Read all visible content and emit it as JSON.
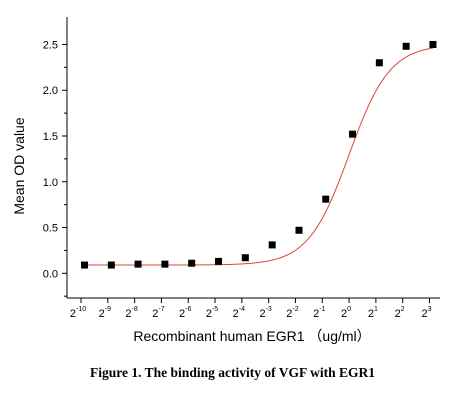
{
  "chart_data": {
    "type": "scatter",
    "title": "",
    "xlabel": "Recombinant human EGR1 （ug/ml）",
    "ylabel": "Mean OD value",
    "x_scale": "log2",
    "xlim": [
      0.00068,
      10.5
    ],
    "ylim": [
      -0.27,
      2.8
    ],
    "x_ticks": [
      {
        "base": "2",
        "exp": "-10",
        "value": 0.0009765625
      },
      {
        "base": "2",
        "exp": "-9",
        "value": 0.001953125
      },
      {
        "base": "2",
        "exp": "-8",
        "value": 0.00390625
      },
      {
        "base": "2",
        "exp": "-7",
        "value": 0.0078125
      },
      {
        "base": "2",
        "exp": "-6",
        "value": 0.015625
      },
      {
        "base": "2",
        "exp": "-5",
        "value": 0.03125
      },
      {
        "base": "2",
        "exp": "-4",
        "value": 0.0625
      },
      {
        "base": "2",
        "exp": "-3",
        "value": 0.125
      },
      {
        "base": "2",
        "exp": "-2",
        "value": 0.25
      },
      {
        "base": "2",
        "exp": "-1",
        "value": 0.5
      },
      {
        "base": "2",
        "exp": "0",
        "value": 1
      },
      {
        "base": "2",
        "exp": "1",
        "value": 2
      },
      {
        "base": "2",
        "exp": "2",
        "value": 4
      },
      {
        "base": "2",
        "exp": "3",
        "value": 8
      }
    ],
    "y_ticks": [
      "0.0",
      "0.5",
      "1.0",
      "1.5",
      "2.0",
      "2.5"
    ],
    "y_tick_values": [
      0,
      0.5,
      1.0,
      1.5,
      2.0,
      2.5
    ],
    "series": [
      {
        "marker": "square",
        "color": "#000000",
        "x": [
          0.00107,
          0.00214,
          0.00427,
          0.00855,
          0.0171,
          0.0342,
          0.0684,
          0.137,
          0.274,
          0.547,
          1.094,
          2.188,
          4.375,
          8.75
        ],
        "y": [
          0.09,
          0.09,
          0.1,
          0.1,
          0.11,
          0.13,
          0.17,
          0.31,
          0.47,
          0.81,
          1.52,
          2.3,
          2.48,
          2.5
        ]
      }
    ],
    "fit_curve": {
      "color": "#e0403a",
      "model": "4PL",
      "bottom": 0.09,
      "top": 2.5,
      "ec50": 1.0,
      "hill": 1.9
    },
    "grid": false,
    "legend": "none"
  },
  "caption": "Figure 1. The binding activity of VGF with EGR1"
}
